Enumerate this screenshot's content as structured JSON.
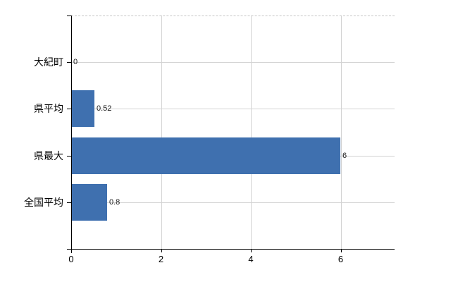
{
  "chart_data": {
    "type": "bar",
    "orientation": "horizontal",
    "title": "",
    "xlabel": "",
    "ylabel": "",
    "categories": [
      "大紀町",
      "県平均",
      "県最大",
      "全国平均"
    ],
    "values": [
      0,
      0.52,
      6,
      0.8
    ],
    "value_labels": [
      "0",
      "0.52",
      "6",
      "0.8"
    ],
    "x_ticks": [
      0,
      2,
      4,
      6
    ],
    "x_tick_labels": [
      "0",
      "2",
      "4",
      "6"
    ],
    "xlim": [
      0,
      7.2
    ],
    "grid": true,
    "legend": false,
    "bar_color": "#3F70AF",
    "gridline_color": "#D3D3D3",
    "top_border_color": "#C6C6C6",
    "axis_color": "#000000",
    "background_color": "#FFFFFF"
  }
}
